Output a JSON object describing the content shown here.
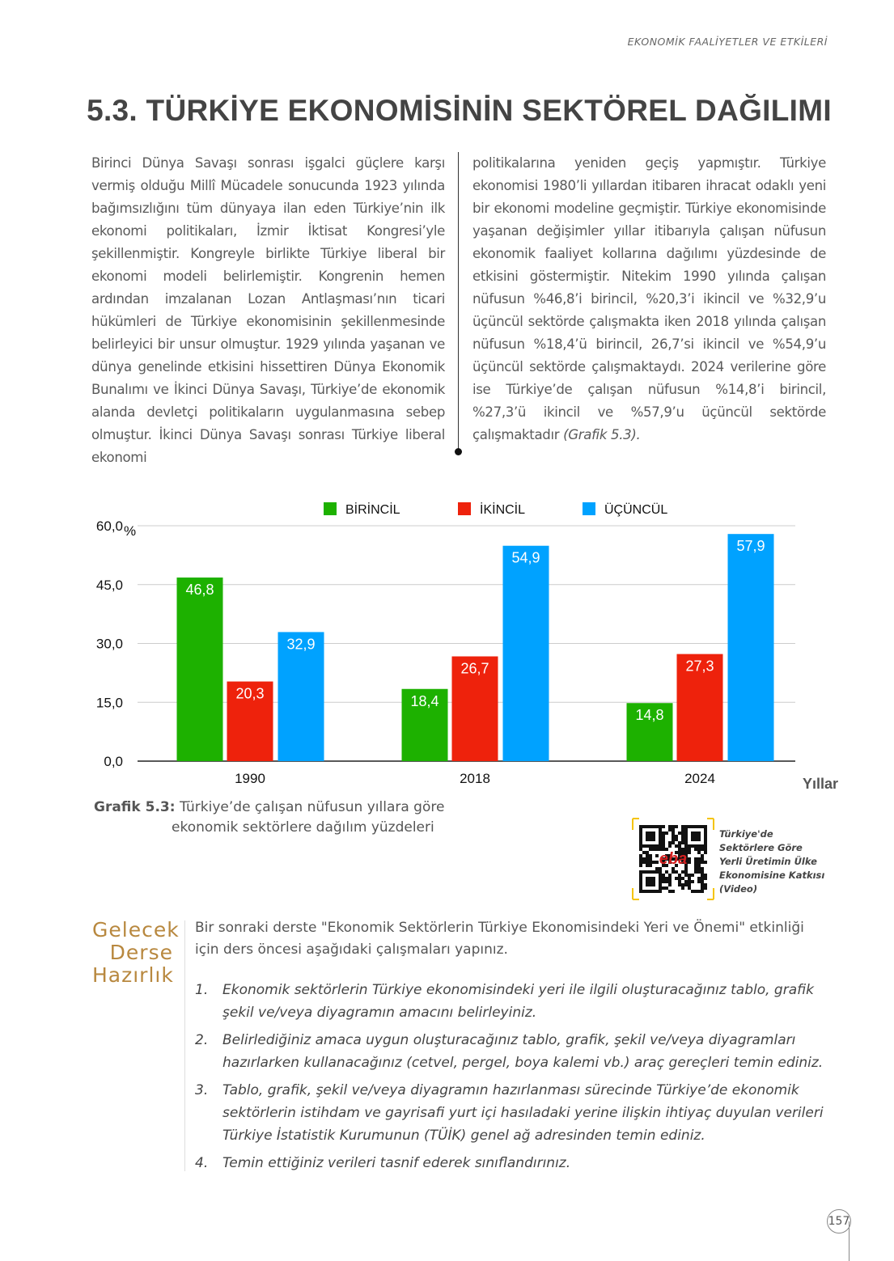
{
  "header": {
    "running_title": "EKONOMİK FAALİYETLER VE ETKİLERİ",
    "page_title": "5.3. TÜRKİYE EKONOMİSİNİN SEKTÖREL DAĞILIMI"
  },
  "body": {
    "col_left": "Birinci Dünya Savaşı sonrası işgalci güçlere karşı vermiş olduğu Millî Mücadele sonucunda 1923 yılında bağımsızlığını tüm dünyaya ilan eden Türkiye’nin ilk ekonomi politikaları, İzmir İktisat Kongresi’yle şekillenmiştir. Kongreyle birlikte Türkiye liberal bir ekonomi modeli belirlemiştir. Kongrenin hemen ardından imzalanan Lozan Antlaşması’nın ticari hükümleri de Türkiye ekonomisinin şekillenmesinde belirleyici bir unsur olmuştur. 1929 yılında yaşanan ve dünya genelinde etkisini hissettiren Dünya Ekonomik Bunalımı ve İkinci Dünya Savaşı, Türkiye’de ekonomik alanda devletçi politikaların uygulanmasına sebep olmuştur. İkinci Dünya Savaşı sonrası Türkiye liberal ekonomi",
    "col_right": "politikalarına yeniden geçiş yapmıştır. Türkiye ekonomisi 1980’li yıllardan itibaren ihracat odaklı yeni bir ekonomi modeline geçmiştir. Türkiye ekonomisinde yaşanan değişimler yıllar itibarıyla çalışan nüfusun ekonomik faaliyet kollarına dağılımı yüzdesinde de etkisini göstermiştir. Nitekim 1990 yılında çalışan nüfusun %46,8’i birincil, %20,3’i ikincil ve %32,9’u üçüncül sektörde çalışmakta iken 2018 yılında çalışan nüfusun %18,4’ü birincil, 26,7’si ikincil ve %54,9’u üçüncül sektörde çalışmaktaydı. 2024 verilerine göre ise Türkiye’de çalışan nüfusun %14,8’i birincil, %27,3’ü ikincil ve %57,9’u üçüncül sektörde çalışmaktadır",
    "col_right_ref": "(Grafik 5.3)."
  },
  "chart_data": {
    "type": "bar",
    "categories": [
      "1990",
      "2018",
      "2024"
    ],
    "series": [
      {
        "name": "BİRİNCİL",
        "color": "#1db100",
        "values": [
          46.8,
          18.4,
          14.8
        ],
        "labels": [
          "46,8",
          "18,4",
          "14,8"
        ]
      },
      {
        "name": "İKİNCİL",
        "color": "#ee220c",
        "values": [
          20.3,
          26.7,
          27.3
        ],
        "labels": [
          "20,3",
          "26,7",
          "27,3"
        ]
      },
      {
        "name": "ÜÇÜNCÜL",
        "color": "#00a2ff",
        "values": [
          32.9,
          54.9,
          57.9
        ],
        "labels": [
          "32,9",
          "54,9",
          "57,9"
        ]
      }
    ],
    "yticks": [
      "0,0",
      "15,0",
      "30,0",
      "45,0",
      "60,0"
    ],
    "ylim": [
      0,
      60
    ],
    "yunit": "%",
    "xlabel": "Yıllar",
    "grid": true,
    "legend": "top"
  },
  "caption": {
    "label": "Grafik 5.3:",
    "line1": "Türkiye’de çalışan nüfusun yıllara göre",
    "line2": "ekonomik sektörlere dağılım yüzdeleri"
  },
  "qr": {
    "logo": "eba",
    "lines": [
      "Türkiye'de",
      "Sektörlere Göre",
      "Yerli Üretimin Ülke",
      "Ekonomisine Katkısı",
      "(Video)"
    ]
  },
  "prep": {
    "heading": [
      "Gelecek",
      "Derse",
      "Hazırlık"
    ],
    "intro": "Bir sonraki derste \"Ekonomik Sektörlerin Türkiye Ekonomisindeki Yeri ve Önemi\" etkinliği için ders öncesi aşağıdaki çalışmaları yapınız.",
    "items": [
      {
        "n": "1.",
        "text": "Ekonomik sektörlerin Türkiye ekonomisindeki yeri ile ilgili oluşturacağınız tablo, grafik şekil ve/veya diyagramın amacını belirleyiniz."
      },
      {
        "n": "2.",
        "text": "Belirlediğiniz amaca uygun oluşturacağınız tablo, grafik, şekil ve/veya diyagramları hazırlarken kullanacağınız (cetvel, pergel, boya kalemi vb.) araç gereçleri temin ediniz."
      },
      {
        "n": "3.",
        "text": "Tablo, grafik, şekil ve/veya diyagramın hazırlanması sürecinde Türkiye’de ekonomik sektörlerin istihdam ve gayrisafi yurt içi hasıladaki yerine ilişkin ihtiyaç duyulan verileri Türkiye İstatistik Kurumunun (TÜİK) genel ağ adresinden temin ediniz."
      },
      {
        "n": "4.",
        "text": "Temin ettiğiniz verileri tasnif ederek sınıflandırınız."
      }
    ]
  },
  "page_number": "157"
}
